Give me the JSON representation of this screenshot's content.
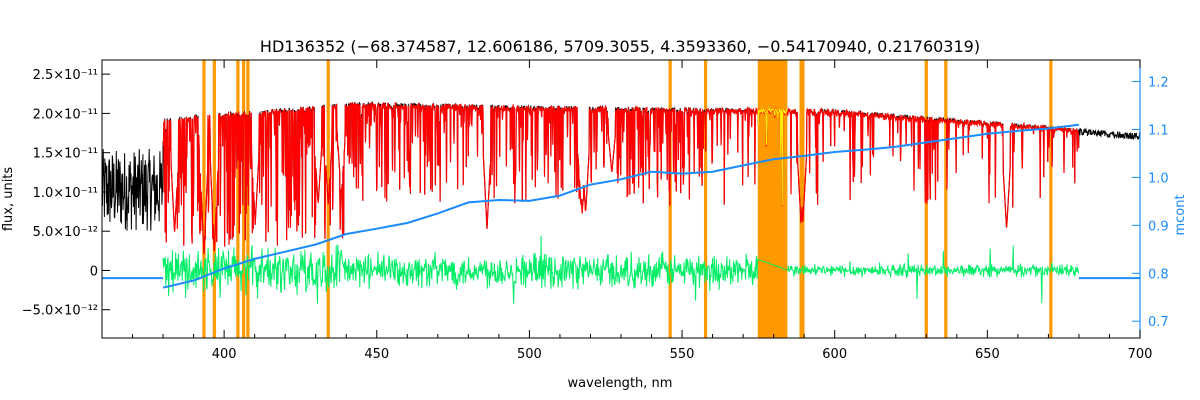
{
  "chart_data": {
    "type": "line",
    "title": "HD136352   (−68.374587, 12.606186, 5709.3055, 4.3593360, −0.54170940, 0.21760319)",
    "xlabel": "wavelength, nm",
    "ylabel": "flux, units",
    "ylabel_right": "mcont",
    "xlim": [
      360,
      700
    ],
    "ylim": [
      -8.6e-12,
      2.68e-11
    ],
    "ylim_right": [
      0.665,
      1.245
    ],
    "x_ticks": [
      400,
      450,
      500,
      550,
      600,
      650,
      700
    ],
    "y_ticks": [
      {
        "value": -5e-12,
        "label": "−5.0×10⁻¹²"
      },
      {
        "value": 0,
        "label": "0"
      },
      {
        "value": 5e-12,
        "label": "5.0×10⁻¹²"
      },
      {
        "value": 1e-11,
        "label": "1.0×10⁻¹¹"
      },
      {
        "value": 1.5e-11,
        "label": "1.5×10⁻¹¹"
      },
      {
        "value": 2e-11,
        "label": "2.0×10⁻¹¹"
      },
      {
        "value": 2.5e-11,
        "label": "2.5×10⁻¹¹"
      }
    ],
    "y_ticks_right": [
      {
        "value": 0.7,
        "label": "0.7"
      },
      {
        "value": 0.8,
        "label": "0.8"
      },
      {
        "value": 0.9,
        "label": "0.9"
      },
      {
        "value": 1.0,
        "label": "1.0"
      },
      {
        "value": 1.1,
        "label": "1.1"
      },
      {
        "value": 1.2,
        "label": "1.2"
      }
    ],
    "masked_lines_nm": [
      393.4,
      396.8,
      404.5,
      406.4,
      407.8,
      434.1,
      546.1,
      557.7,
      588.99,
      589.59,
      630.0,
      636.4,
      670.8
    ],
    "masked_band_nm": [
      574.8,
      584.5
    ],
    "continuum_mcont": {
      "x": [
        380,
        390,
        400,
        410,
        420,
        430,
        440,
        450,
        460,
        470,
        480,
        490,
        500,
        510,
        520,
        530,
        540,
        550,
        560,
        570,
        580,
        590,
        600,
        610,
        620,
        630,
        640,
        650,
        660,
        670,
        680
      ],
      "y": [
        0.77,
        0.785,
        0.81,
        0.83,
        0.845,
        0.86,
        0.882,
        0.893,
        0.905,
        0.925,
        0.948,
        0.953,
        0.951,
        0.962,
        0.985,
        0.996,
        1.012,
        1.008,
        1.012,
        1.025,
        1.038,
        1.045,
        1.053,
        1.058,
        1.064,
        1.073,
        1.082,
        1.091,
        1.097,
        1.102,
        1.11
      ]
    },
    "series": [
      {
        "x_range": [
          360,
          700
        ],
        "color": "#000000"
      },
      {
        "x_range": [
          380,
          680
        ],
        "color": "#ff0000"
      },
      {
        "x_range": [
          380,
          680
        ],
        "color": "#00ee66"
      },
      {
        "x_range": [
          360,
          700
        ],
        "color": "#1a8cff"
      }
    ],
    "colors": {
      "mask": "#ff9900",
      "inside_mask": "#ffee00",
      "observed": "#000000",
      "model": "#ff0000",
      "residual": "#00ee66",
      "continuum": "#1a8cff",
      "axis": "#000000",
      "right_axis": "#1a8cff"
    }
  }
}
